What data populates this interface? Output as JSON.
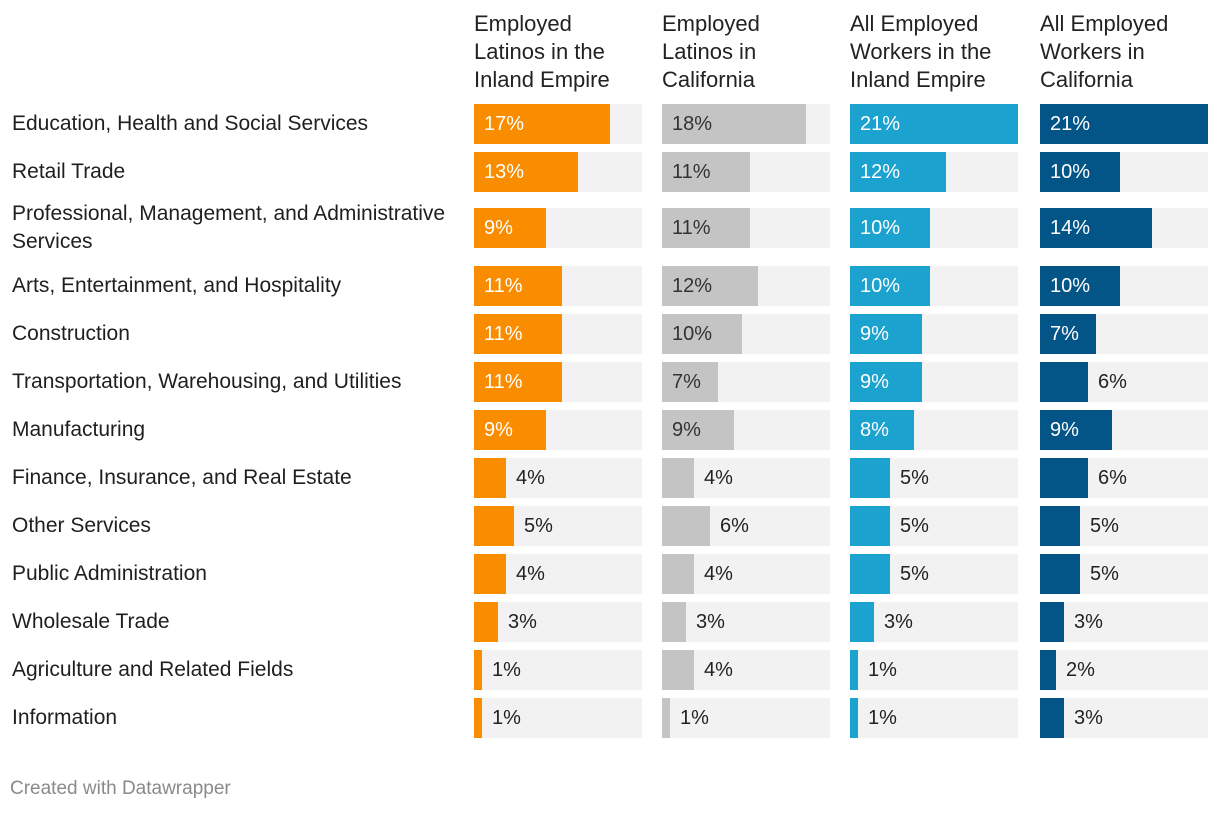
{
  "chart_data": {
    "type": "bar",
    "title": "",
    "xlabel": "",
    "ylabel": "",
    "xlim": [
      0,
      21
    ],
    "value_suffix": "%",
    "categories": [
      "Education, Health and Social Services",
      "Retail Trade",
      "Professional, Management, and Administrative Services",
      "Arts, Entertainment, and Hospitality",
      "Construction",
      "Transportation, Warehousing, and Utilities",
      "Manufacturing",
      "Finance, Insurance, and Real Estate",
      "Other Services",
      "Public Administration",
      "Wholesale Trade",
      "Agriculture and Related Fields",
      "Information"
    ],
    "series": [
      {
        "name": "Employed Latinos in the Inland Empire",
        "color": "#fa8c00",
        "label_color_inside": "#ffffff",
        "values": [
          17,
          13,
          9,
          11,
          11,
          11,
          9,
          4,
          5,
          4,
          3,
          1,
          1
        ]
      },
      {
        "name": "Employed Latinos in California",
        "color": "#c4c4c4",
        "label_color_inside": "#333333",
        "values": [
          18,
          11,
          11,
          12,
          10,
          7,
          9,
          4,
          6,
          4,
          3,
          4,
          1
        ]
      },
      {
        "name": "All Employed Workers in the Inland Empire",
        "color": "#1ba2ce",
        "label_color_inside": "#ffffff",
        "values": [
          21,
          12,
          10,
          10,
          9,
          9,
          8,
          5,
          5,
          5,
          3,
          1,
          1
        ]
      },
      {
        "name": "All Employed Workers in California",
        "color": "#045587",
        "label_color_inside": "#ffffff",
        "values": [
          21,
          10,
          14,
          10,
          7,
          6,
          9,
          6,
          5,
          5,
          3,
          2,
          3
        ]
      }
    ]
  },
  "headers": [
    "Employed Latinos in the Inland Empire",
    "Employed Latinos in California",
    "All Employed Workers in the Inland Empire",
    "All Employed Workers in California"
  ],
  "footer": "Created with Datawrapper"
}
